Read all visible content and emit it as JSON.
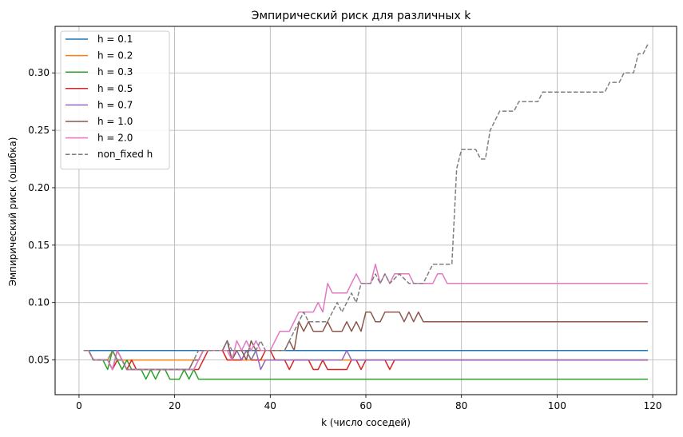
{
  "chart_data": {
    "type": "line",
    "title": "Эмпирический риск для различных k",
    "xlabel": "k (число соседей)",
    "ylabel": "Эмпирический риск (ошибка)",
    "xlim": [
      -5,
      125
    ],
    "ylim": [
      0.0198,
      0.3405
    ],
    "x_ticks": [
      0,
      20,
      40,
      60,
      80,
      100,
      120
    ],
    "x_tick_labels": [
      "0",
      "20",
      "40",
      "60",
      "80",
      "100",
      "120"
    ],
    "y_ticks": [
      0.05,
      0.1,
      0.15,
      0.2,
      0.25,
      0.3
    ],
    "y_tick_labels": [
      "0.05",
      "0.10",
      "0.15",
      "0.20",
      "0.25",
      "0.30"
    ],
    "grid": true,
    "legend_position": "top-left",
    "series": [
      {
        "name": "h = 0.1",
        "color": "#1f77b4",
        "style": "solid",
        "points": [
          [
            1,
            0.0583
          ],
          [
            3,
            0.0583
          ],
          [
            119,
            0.0583
          ]
        ]
      },
      {
        "name": "h = 0.2",
        "color": "#ff7f0e",
        "style": "solid",
        "points": [
          [
            1,
            0.0583
          ],
          [
            2,
            0.0583
          ],
          [
            3,
            0.05
          ],
          [
            6,
            0.05
          ],
          [
            7,
            0.0583
          ],
          [
            8,
            0.05
          ],
          [
            25,
            0.05
          ],
          [
            26,
            0.0583
          ],
          [
            30,
            0.0583
          ],
          [
            31,
            0.05
          ],
          [
            119,
            0.05
          ]
        ]
      },
      {
        "name": "h = 0.3",
        "color": "#2ca02c",
        "style": "solid",
        "points": [
          [
            1,
            0.0583
          ],
          [
            2,
            0.0583
          ],
          [
            3,
            0.05
          ],
          [
            5,
            0.05
          ],
          [
            6,
            0.0417
          ],
          [
            7,
            0.0583
          ],
          [
            8,
            0.05
          ],
          [
            9,
            0.0417
          ],
          [
            10,
            0.05
          ],
          [
            11,
            0.0417
          ],
          [
            13,
            0.0417
          ],
          [
            14,
            0.0333
          ],
          [
            15,
            0.0417
          ],
          [
            16,
            0.0333
          ],
          [
            17,
            0.0417
          ],
          [
            18,
            0.0417
          ],
          [
            19,
            0.0333
          ],
          [
            21,
            0.0333
          ],
          [
            22,
            0.0417
          ],
          [
            23,
            0.0333
          ],
          [
            24,
            0.0417
          ],
          [
            25,
            0.0333
          ],
          [
            119,
            0.0333
          ]
        ]
      },
      {
        "name": "h = 0.5",
        "color": "#d62728",
        "style": "solid",
        "points": [
          [
            1,
            0.0583
          ],
          [
            2,
            0.0583
          ],
          [
            3,
            0.05
          ],
          [
            6,
            0.05
          ],
          [
            7,
            0.0417
          ],
          [
            8,
            0.05
          ],
          [
            9,
            0.05
          ],
          [
            10,
            0.0417
          ],
          [
            11,
            0.05
          ],
          [
            12,
            0.0417
          ],
          [
            25,
            0.0417
          ],
          [
            26,
            0.05
          ],
          [
            27,
            0.0583
          ],
          [
            30,
            0.0583
          ],
          [
            31,
            0.05
          ],
          [
            34,
            0.05
          ],
          [
            35,
            0.0583
          ],
          [
            36,
            0.05
          ],
          [
            38,
            0.05
          ],
          [
            39,
            0.0583
          ],
          [
            40,
            0.0583
          ],
          [
            41,
            0.05
          ],
          [
            43,
            0.05
          ],
          [
            44,
            0.0417
          ],
          [
            45,
            0.05
          ],
          [
            48,
            0.05
          ],
          [
            49,
            0.0417
          ],
          [
            50,
            0.0417
          ],
          [
            51,
            0.05
          ],
          [
            52,
            0.0417
          ],
          [
            56,
            0.0417
          ],
          [
            57,
            0.05
          ],
          [
            58,
            0.05
          ],
          [
            59,
            0.0417
          ],
          [
            60,
            0.05
          ],
          [
            64,
            0.05
          ],
          [
            65,
            0.0417
          ],
          [
            66,
            0.05
          ],
          [
            119,
            0.05
          ]
        ]
      },
      {
        "name": "h = 0.7",
        "color": "#9467bd",
        "style": "solid",
        "points": [
          [
            1,
            0.0583
          ],
          [
            2,
            0.0583
          ],
          [
            3,
            0.05
          ],
          [
            6,
            0.05
          ],
          [
            7,
            0.0417
          ],
          [
            8,
            0.0583
          ],
          [
            9,
            0.05
          ],
          [
            10,
            0.0417
          ],
          [
            11,
            0.0417
          ],
          [
            12,
            0.0417
          ],
          [
            24,
            0.0417
          ],
          [
            25,
            0.05
          ],
          [
            26,
            0.0583
          ],
          [
            30,
            0.0583
          ],
          [
            31,
            0.0667
          ],
          [
            32,
            0.05
          ],
          [
            33,
            0.0583
          ],
          [
            34,
            0.05
          ],
          [
            35,
            0.0583
          ],
          [
            36,
            0.05
          ],
          [
            37,
            0.0583
          ],
          [
            38,
            0.0417
          ],
          [
            39,
            0.05
          ],
          [
            55,
            0.05
          ],
          [
            56,
            0.0583
          ],
          [
            57,
            0.05
          ],
          [
            119,
            0.05
          ]
        ]
      },
      {
        "name": "h = 1.0",
        "color": "#8c564b",
        "style": "solid",
        "points": [
          [
            1,
            0.0583
          ],
          [
            2,
            0.0583
          ],
          [
            3,
            0.05
          ],
          [
            6,
            0.05
          ],
          [
            7,
            0.0417
          ],
          [
            8,
            0.0583
          ],
          [
            9,
            0.05
          ],
          [
            10,
            0.0417
          ],
          [
            11,
            0.0417
          ],
          [
            23,
            0.0417
          ],
          [
            24,
            0.05
          ],
          [
            25,
            0.05
          ],
          [
            26,
            0.0583
          ],
          [
            30,
            0.0583
          ],
          [
            31,
            0.0667
          ],
          [
            32,
            0.05
          ],
          [
            33,
            0.0583
          ],
          [
            34,
            0.0583
          ],
          [
            35,
            0.05
          ],
          [
            36,
            0.0667
          ],
          [
            37,
            0.0583
          ],
          [
            38,
            0.0583
          ],
          [
            39,
            0.0583
          ],
          [
            40,
            0.0583
          ],
          [
            43,
            0.0583
          ],
          [
            44,
            0.0667
          ],
          [
            45,
            0.0583
          ],
          [
            46,
            0.0833
          ],
          [
            47,
            0.075
          ],
          [
            48,
            0.0833
          ],
          [
            49,
            0.075
          ],
          [
            51,
            0.075
          ],
          [
            52,
            0.0833
          ],
          [
            53,
            0.075
          ],
          [
            55,
            0.075
          ],
          [
            56,
            0.0833
          ],
          [
            57,
            0.075
          ],
          [
            58,
            0.0833
          ],
          [
            59,
            0.075
          ],
          [
            60,
            0.0917
          ],
          [
            61,
            0.0917
          ],
          [
            62,
            0.0833
          ],
          [
            63,
            0.0833
          ],
          [
            64,
            0.0917
          ],
          [
            67,
            0.0917
          ],
          [
            68,
            0.0833
          ],
          [
            69,
            0.0917
          ],
          [
            70,
            0.0833
          ],
          [
            71,
            0.0917
          ],
          [
            72,
            0.0833
          ],
          [
            119,
            0.0833
          ]
        ]
      },
      {
        "name": "h = 2.0",
        "color": "#e377c2",
        "style": "solid",
        "points": [
          [
            1,
            0.0583
          ],
          [
            2,
            0.0583
          ],
          [
            3,
            0.05
          ],
          [
            6,
            0.05
          ],
          [
            7,
            0.0417
          ],
          [
            8,
            0.0583
          ],
          [
            9,
            0.05
          ],
          [
            10,
            0.0417
          ],
          [
            11,
            0.0417
          ],
          [
            12,
            0.0417
          ],
          [
            24,
            0.0417
          ],
          [
            25,
            0.05
          ],
          [
            26,
            0.0583
          ],
          [
            30,
            0.0583
          ],
          [
            31,
            0.0583
          ],
          [
            32,
            0.05
          ],
          [
            33,
            0.0667
          ],
          [
            34,
            0.0583
          ],
          [
            35,
            0.0667
          ],
          [
            36,
            0.0583
          ],
          [
            37,
            0.0667
          ],
          [
            38,
            0.0583
          ],
          [
            39,
            0.0583
          ],
          [
            40,
            0.0583
          ],
          [
            42,
            0.075
          ],
          [
            44,
            0.075
          ],
          [
            45,
            0.0833
          ],
          [
            46,
            0.0917
          ],
          [
            49,
            0.0917
          ],
          [
            50,
            0.1
          ],
          [
            51,
            0.0917
          ],
          [
            52,
            0.1167
          ],
          [
            53,
            0.1083
          ],
          [
            56,
            0.1083
          ],
          [
            57,
            0.1167
          ],
          [
            58,
            0.125
          ],
          [
            59,
            0.1167
          ],
          [
            61,
            0.1167
          ],
          [
            62,
            0.1333
          ],
          [
            63,
            0.1167
          ],
          [
            64,
            0.125
          ],
          [
            65,
            0.1167
          ],
          [
            66,
            0.125
          ],
          [
            69,
            0.125
          ],
          [
            70,
            0.1167
          ],
          [
            74,
            0.1167
          ],
          [
            75,
            0.125
          ],
          [
            76,
            0.125
          ],
          [
            77,
            0.1167
          ],
          [
            119,
            0.1167
          ]
        ]
      },
      {
        "name": "non_fixed h",
        "color": "#7f7f7f",
        "style": "dashed",
        "points": [
          [
            1,
            0.0583
          ],
          [
            2,
            0.0583
          ],
          [
            3,
            0.05
          ],
          [
            6,
            0.05
          ],
          [
            7,
            0.0583
          ],
          [
            8,
            0.05
          ],
          [
            9,
            0.05
          ],
          [
            10,
            0.0417
          ],
          [
            11,
            0.0417
          ],
          [
            23,
            0.0417
          ],
          [
            24,
            0.05
          ],
          [
            25,
            0.0583
          ],
          [
            26,
            0.0583
          ],
          [
            27,
            0.0583
          ],
          [
            30,
            0.0583
          ],
          [
            31,
            0.0667
          ],
          [
            32,
            0.0583
          ],
          [
            33,
            0.0583
          ],
          [
            34,
            0.0583
          ],
          [
            35,
            0.0583
          ],
          [
            36,
            0.05
          ],
          [
            37,
            0.0583
          ],
          [
            38,
            0.0667
          ],
          [
            39,
            0.0583
          ],
          [
            41,
            0.0583
          ],
          [
            43,
            0.0583
          ],
          [
            44,
            0.0667
          ],
          [
            45,
            0.075
          ],
          [
            46,
            0.0833
          ],
          [
            47,
            0.0917
          ],
          [
            48,
            0.0833
          ],
          [
            49,
            0.0833
          ],
          [
            52,
            0.0833
          ],
          [
            53,
            0.0917
          ],
          [
            54,
            0.1
          ],
          [
            55,
            0.0917
          ],
          [
            57,
            0.1083
          ],
          [
            58,
            0.1
          ],
          [
            59,
            0.1167
          ],
          [
            61,
            0.1167
          ],
          [
            62,
            0.125
          ],
          [
            63,
            0.1167
          ],
          [
            64,
            0.125
          ],
          [
            65,
            0.1167
          ],
          [
            67,
            0.125
          ],
          [
            69,
            0.1167
          ],
          [
            72,
            0.1167
          ],
          [
            73,
            0.125
          ],
          [
            74,
            0.1333
          ],
          [
            78,
            0.1333
          ],
          [
            79,
            0.2167
          ],
          [
            80,
            0.2333
          ],
          [
            83,
            0.2333
          ],
          [
            84,
            0.225
          ],
          [
            85,
            0.225
          ],
          [
            86,
            0.25
          ],
          [
            88,
            0.2667
          ],
          [
            91,
            0.2667
          ],
          [
            92,
            0.275
          ],
          [
            96,
            0.275
          ],
          [
            97,
            0.2833
          ],
          [
            110,
            0.2833
          ],
          [
            111,
            0.2917
          ],
          [
            113,
            0.2917
          ],
          [
            114,
            0.3
          ],
          [
            116,
            0.3
          ],
          [
            117,
            0.3167
          ],
          [
            118,
            0.3167
          ],
          [
            119,
            0.325
          ]
        ]
      }
    ]
  }
}
